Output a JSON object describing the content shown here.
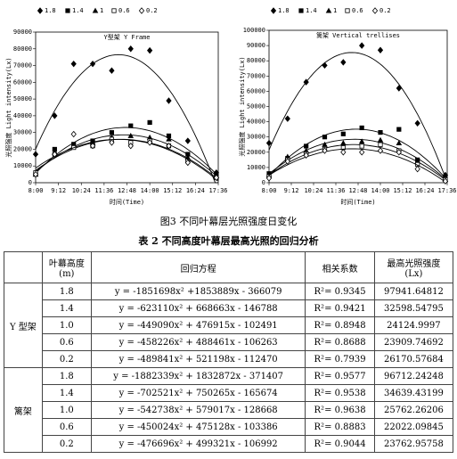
{
  "chart_data": [
    {
      "type": "scatter",
      "title": "Y型架 Y Frame",
      "x_label": "时间(Time)",
      "y_label": "光照强度 Light intensity(Lx)",
      "x": [
        8,
        9,
        10,
        11,
        12,
        13,
        14,
        15,
        16,
        17.5
      ],
      "xlim": [
        8,
        17.6
      ],
      "xticks": [
        {
          "value": 8,
          "label": "8:00"
        },
        {
          "value": 9.2,
          "label": "9:12"
        },
        {
          "value": 10.4,
          "label": "10:24"
        },
        {
          "value": 11.6,
          "label": "11:36"
        },
        {
          "value": 12.8,
          "label": "12:48"
        },
        {
          "value": 14,
          "label": "14:00"
        },
        {
          "value": 15.2,
          "label": "15:12"
        },
        {
          "value": 16.4,
          "label": "16:24"
        },
        {
          "value": 17.6,
          "label": "17:36"
        }
      ],
      "ylim": [
        0,
        90000
      ],
      "yticks": [
        0,
        10000,
        20000,
        30000,
        40000,
        50000,
        60000,
        70000,
        80000,
        90000
      ],
      "series": [
        {
          "name": "1.8",
          "color": "#000",
          "marker": "diamond",
          "filled": true,
          "values": [
            17000,
            40000,
            71000,
            71000,
            67000,
            80000,
            79000,
            49000,
            25000,
            6000
          ]
        },
        {
          "name": "1.4",
          "color": "#000",
          "marker": "square",
          "filled": true,
          "values": [
            5000,
            20000,
            23000,
            25000,
            30000,
            34000,
            36000,
            28000,
            17000,
            5000
          ]
        },
        {
          "name": "1",
          "color": "#000",
          "marker": "triangle",
          "filled": true,
          "values": [
            5000,
            18000,
            22000,
            24000,
            27000,
            28000,
            27000,
            26000,
            15000,
            4000
          ]
        },
        {
          "name": "0.6",
          "color": "#000",
          "marker": "square",
          "filled": false,
          "values": [
            6000,
            17000,
            21000,
            22000,
            26000,
            24000,
            25000,
            22000,
            13000,
            3000
          ]
        },
        {
          "name": "0.2",
          "color": "#000",
          "marker": "diamond",
          "filled": false,
          "values": [
            5000,
            17000,
            29000,
            22000,
            24000,
            22000,
            24000,
            22000,
            12000,
            3000
          ]
        }
      ]
    },
    {
      "type": "scatter",
      "title": "篱架 Vertical trellises",
      "x_label": "时间(Time)",
      "y_label": "光照强度 Light intensity(Lx)",
      "x": [
        8,
        9,
        10,
        11,
        12,
        13,
        14,
        15,
        16,
        17.5
      ],
      "xlim": [
        8,
        17.6
      ],
      "xticks": [
        {
          "value": 8,
          "label": "8:00"
        },
        {
          "value": 9.2,
          "label": "9:12"
        },
        {
          "value": 10.4,
          "label": "10:24"
        },
        {
          "value": 11.6,
          "label": "11:36"
        },
        {
          "value": 12.8,
          "label": "12:48"
        },
        {
          "value": 14,
          "label": "14:00"
        },
        {
          "value": 15.2,
          "label": "15:12"
        },
        {
          "value": 16.4,
          "label": "16:24"
        },
        {
          "value": 17.6,
          "label": "17:36"
        }
      ],
      "ylim": [
        0,
        100000
      ],
      "yticks": [
        0,
        10000,
        20000,
        30000,
        40000,
        50000,
        60000,
        70000,
        80000,
        90000,
        100000
      ],
      "series": [
        {
          "name": "1.8",
          "color": "#000",
          "marker": "diamond",
          "filled": true,
          "values": [
            26000,
            42000,
            66000,
            77000,
            79000,
            90000,
            87000,
            62000,
            39000,
            5000
          ]
        },
        {
          "name": "1.4",
          "color": "#000",
          "marker": "square",
          "filled": true,
          "values": [
            6000,
            16000,
            24000,
            30000,
            32000,
            36000,
            33000,
            35000,
            15000,
            3000
          ]
        },
        {
          "name": "1",
          "color": "#000",
          "marker": "triangle",
          "filled": true,
          "values": [
            5000,
            17000,
            21000,
            25000,
            26000,
            27000,
            28000,
            26000,
            14000,
            2000
          ]
        },
        {
          "name": "0.6",
          "color": "#000",
          "marker": "square",
          "filled": false,
          "values": [
            4000,
            15000,
            19000,
            22000,
            23000,
            24000,
            25000,
            21000,
            12000,
            2000
          ]
        },
        {
          "name": "0.2",
          "color": "#000",
          "marker": "diamond",
          "filled": false,
          "values": [
            3000,
            14000,
            18000,
            21000,
            20000,
            20000,
            21000,
            20000,
            9000,
            1000
          ]
        }
      ]
    }
  ],
  "figure_caption": "图3   不同叶幕层光照强度日变化",
  "table": {
    "title": "表 2  不同高度叶幕层最高光照的回归分析",
    "header": [
      "",
      "叶幕高度\n(m)",
      "回归方程",
      "相关系数",
      "最高光照强度\n(Lx)"
    ],
    "groups": [
      {
        "name": "Y 型架",
        "rows": [
          [
            "1.8",
            "y = -1851698x² +1853889x - 366079",
            "R²= 0.9345",
            "97941.64812"
          ],
          [
            "1.4",
            "y = -623110x² + 668663x - 146788",
            "R²= 0.9421",
            "32598.54795"
          ],
          [
            "1.0",
            "y = -449090x² + 476915x - 102491",
            "R²= 0.8948",
            "24124.9997"
          ],
          [
            "0.6",
            "y = -458226x² + 488461x - 106263",
            "R²= 0.8688",
            "23909.74692"
          ],
          [
            "0.2",
            "y = -489841x² + 521198x - 112470",
            "R²= 0.7939",
            "26170.57684"
          ]
        ]
      },
      {
        "name": "篱架",
        "rows": [
          [
            "1.8",
            "y = -1882339x² + 1832872x - 371407",
            "R²= 0.9577",
            "96712.24248"
          ],
          [
            "1.4",
            "y = -702521x² + 750265x - 165674",
            "R²= 0.9538",
            "34639.43199"
          ],
          [
            "1.0",
            "y = -542738x² + 579017x - 128668",
            "R²= 0.9638",
            "25762.26206"
          ],
          [
            "0.6",
            "y = -450024x² + 475128x - 103386",
            "R²= 0.8883",
            "22022.09845"
          ],
          [
            "0.2",
            "y = -476696x² + 499321x - 106992",
            "R²= 0.9044",
            "23762.95758"
          ]
        ]
      }
    ]
  }
}
